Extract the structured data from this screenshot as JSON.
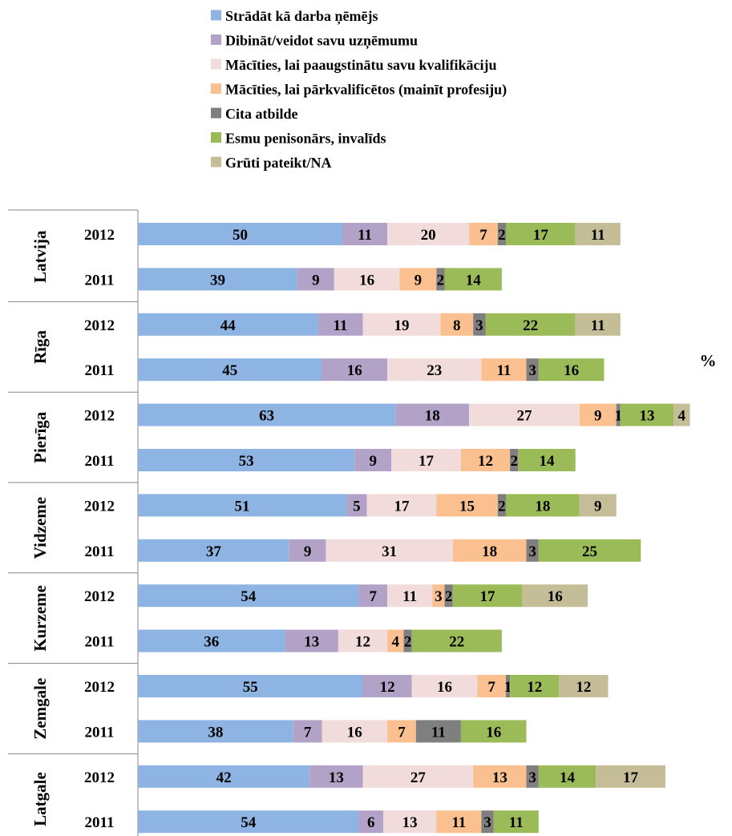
{
  "chart_data": {
    "type": "bar",
    "orientation": "horizontal",
    "stacked": true,
    "unit_label": "%",
    "legend_position": "top",
    "grid": false,
    "series": [
      {
        "name": "Strādāt kā darba ņēmējs",
        "color": "#8EB4E3"
      },
      {
        "name": "Dibināt/veidot savu uzņēmumu",
        "color": "#B3A2C7"
      },
      {
        "name": "Mācīties, lai paaugstinātu savu kvalifikāciju",
        "color": "#F2DCDB"
      },
      {
        "name": "Mācīties, lai pārkvalificētos (mainīt profesiju)",
        "color": "#FAC090"
      },
      {
        "name": "Cita atbilde",
        "color": "#7F7F7F"
      },
      {
        "name": "Esmu penisonārs, invalīds",
        "color": "#9BBB59"
      },
      {
        "name": "Grūti pateikt/NA",
        "color": "#C4BD97"
      }
    ],
    "groups": [
      {
        "region": "Latvija",
        "rows": [
          {
            "year": "2012",
            "values": [
              50,
              11,
              20,
              7,
              2,
              17,
              11
            ]
          },
          {
            "year": "2011",
            "values": [
              39,
              9,
              16,
              9,
              2,
              14,
              0
            ]
          }
        ]
      },
      {
        "region": "Rīga",
        "rows": [
          {
            "year": "2012",
            "values": [
              44,
              11,
              19,
              8,
              3,
              22,
              11
            ]
          },
          {
            "year": "2011",
            "values": [
              45,
              16,
              23,
              11,
              3,
              16,
              0
            ]
          }
        ]
      },
      {
        "region": "Pierīga",
        "rows": [
          {
            "year": "2012",
            "values": [
              63,
              18,
              27,
              9,
              1,
              13,
              4
            ]
          },
          {
            "year": "2011",
            "values": [
              53,
              9,
              17,
              12,
              2,
              14,
              0
            ]
          }
        ]
      },
      {
        "region": "Vidzeme",
        "rows": [
          {
            "year": "2012",
            "values": [
              51,
              5,
              17,
              15,
              2,
              18,
              9
            ]
          },
          {
            "year": "2011",
            "values": [
              37,
              9,
              31,
              18,
              3,
              25,
              0
            ]
          }
        ]
      },
      {
        "region": "Kurzeme",
        "rows": [
          {
            "year": "2012",
            "values": [
              54,
              7,
              11,
              3,
              2,
              17,
              16
            ]
          },
          {
            "year": "2011",
            "values": [
              36,
              13,
              12,
              4,
              2,
              22,
              0
            ]
          }
        ]
      },
      {
        "region": "Zemgale",
        "rows": [
          {
            "year": "2012",
            "values": [
              55,
              12,
              16,
              7,
              1,
              12,
              12
            ]
          },
          {
            "year": "2011",
            "values": [
              38,
              7,
              16,
              7,
              11,
              16,
              0
            ]
          }
        ]
      },
      {
        "region": "Latgale",
        "rows": [
          {
            "year": "2012",
            "values": [
              42,
              13,
              27,
              13,
              3,
              14,
              17
            ]
          },
          {
            "year": "2011",
            "values": [
              54,
              6,
              13,
              11,
              3,
              11,
              0
            ]
          }
        ]
      }
    ]
  }
}
